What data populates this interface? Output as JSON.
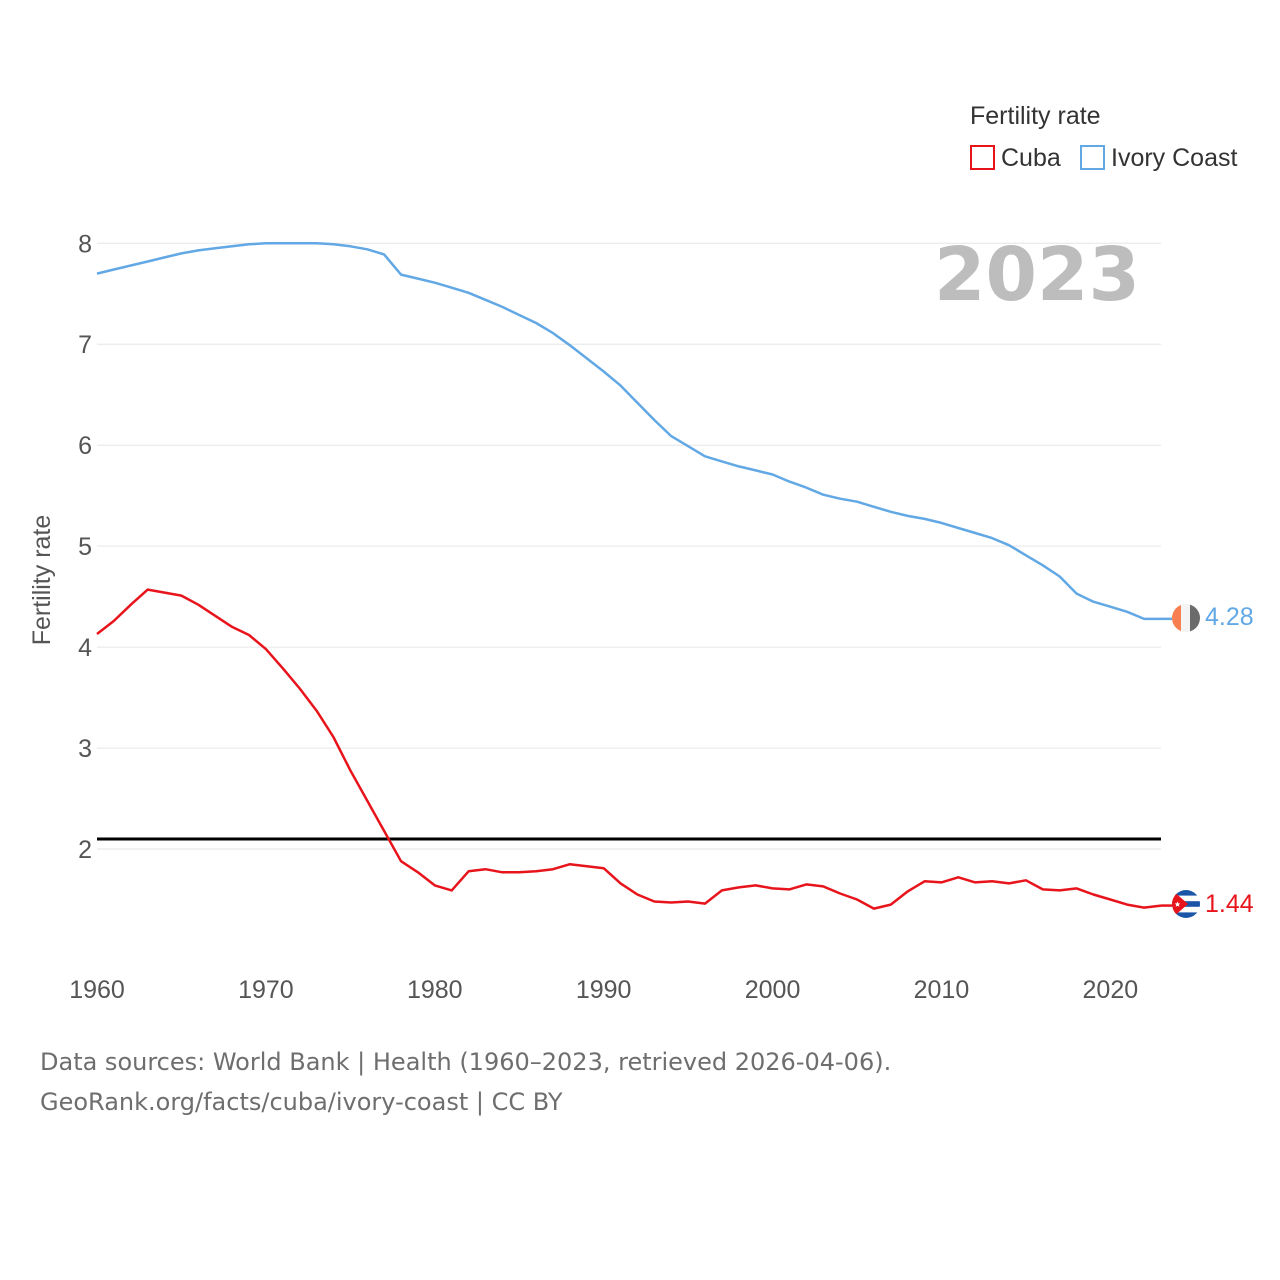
{
  "chart_data": {
    "type": "line",
    "title": "",
    "ylabel": "Fertility rate",
    "xlabel": "",
    "xlim": [
      1960,
      2023
    ],
    "ylim": [
      1,
      8.3
    ],
    "x_ticks": [
      1960,
      1970,
      1980,
      1990,
      2000,
      2010,
      2020
    ],
    "y_ticks": [
      2,
      3,
      4,
      5,
      6,
      7,
      8
    ],
    "grid": true,
    "year_label": "2023",
    "legend": {
      "title": "Fertility rate",
      "position": "top-right",
      "entries": [
        "Cuba",
        "Ivory Coast"
      ]
    },
    "reference_line": {
      "y": 2.1,
      "color": "#000000"
    },
    "series": [
      {
        "name": "Cuba",
        "color": "#e8141c",
        "end_label": "1.44",
        "x": [
          1960,
          1961,
          1962,
          1963,
          1964,
          1965,
          1966,
          1967,
          1968,
          1969,
          1970,
          1971,
          1972,
          1973,
          1974,
          1975,
          1976,
          1977,
          1978,
          1979,
          1980,
          1981,
          1982,
          1983,
          1984,
          1985,
          1986,
          1987,
          1988,
          1989,
          1990,
          1991,
          1992,
          1993,
          1994,
          1995,
          1996,
          1997,
          1998,
          1999,
          2000,
          2001,
          2002,
          2003,
          2004,
          2005,
          2006,
          2007,
          2008,
          2009,
          2010,
          2011,
          2012,
          2013,
          2014,
          2015,
          2016,
          2017,
          2018,
          2019,
          2020,
          2021,
          2022,
          2023
        ],
        "values": [
          4.13,
          4.26,
          4.42,
          4.57,
          4.54,
          4.51,
          4.42,
          4.31,
          4.2,
          4.12,
          3.98,
          3.79,
          3.59,
          3.37,
          3.11,
          2.78,
          2.48,
          2.18,
          1.88,
          1.77,
          1.64,
          1.59,
          1.78,
          1.8,
          1.77,
          1.77,
          1.78,
          1.8,
          1.85,
          1.83,
          1.81,
          1.66,
          1.55,
          1.48,
          1.47,
          1.48,
          1.46,
          1.59,
          1.62,
          1.64,
          1.61,
          1.6,
          1.65,
          1.63,
          1.56,
          1.5,
          1.41,
          1.45,
          1.58,
          1.68,
          1.67,
          1.72,
          1.67,
          1.68,
          1.66,
          1.69,
          1.6,
          1.59,
          1.61,
          1.55,
          1.5,
          1.45,
          1.42,
          1.44
        ]
      },
      {
        "name": "Ivory Coast",
        "color": "#62a8e5",
        "end_label": "4.28",
        "x": [
          1960,
          1961,
          1962,
          1963,
          1964,
          1965,
          1966,
          1967,
          1968,
          1969,
          1970,
          1971,
          1972,
          1973,
          1974,
          1975,
          1976,
          1977,
          1978,
          1979,
          1980,
          1981,
          1982,
          1983,
          1984,
          1985,
          1986,
          1987,
          1988,
          1989,
          1990,
          1991,
          1992,
          1993,
          1994,
          1995,
          1996,
          1997,
          1998,
          1999,
          2000,
          2001,
          2002,
          2003,
          2004,
          2005,
          2006,
          2007,
          2008,
          2009,
          2010,
          2011,
          2012,
          2013,
          2014,
          2015,
          2016,
          2017,
          2018,
          2019,
          2020,
          2021,
          2022,
          2023
        ],
        "values": [
          7.7,
          7.74,
          7.78,
          7.82,
          7.86,
          7.9,
          7.93,
          7.95,
          7.97,
          7.99,
          8.0,
          8.0,
          8.0,
          8.0,
          7.99,
          7.97,
          7.94,
          7.89,
          7.69,
          7.65,
          7.61,
          7.56,
          7.51,
          7.44,
          7.37,
          7.29,
          7.21,
          7.11,
          6.99,
          6.86,
          6.73,
          6.59,
          6.42,
          6.25,
          6.09,
          5.99,
          5.89,
          5.84,
          5.79,
          5.75,
          5.71,
          5.64,
          5.58,
          5.51,
          5.47,
          5.44,
          5.39,
          5.34,
          5.3,
          5.27,
          5.23,
          5.18,
          5.13,
          5.08,
          5.01,
          4.91,
          4.81,
          4.7,
          4.53,
          4.45,
          4.4,
          4.35,
          4.28,
          4.28
        ]
      }
    ]
  },
  "footer": {
    "line1": "Data sources: World Bank | Health (1960–2023, retrieved 2026-04-06).",
    "line2": "GeoRank.org/facts/cuba/ivory-coast | CC BY"
  },
  "icons": [
    "flag-cuba-icon",
    "flag-ivory-coast-icon"
  ]
}
